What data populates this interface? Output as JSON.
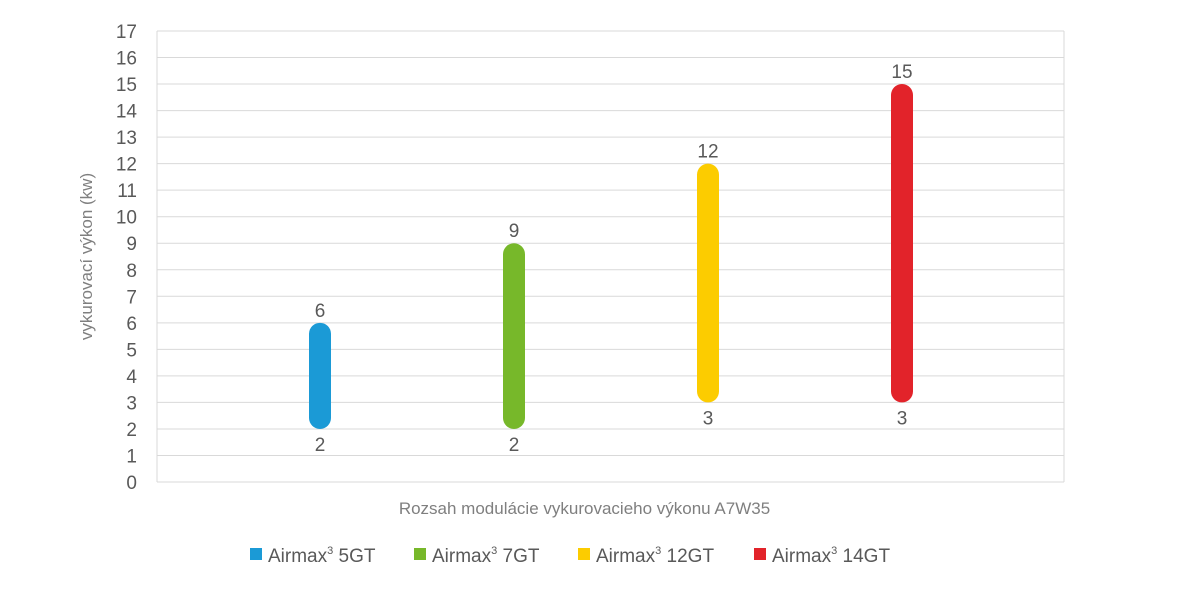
{
  "chart_data": {
    "type": "range-bar",
    "ylabel": "vykurovací výkon (kw)",
    "xlabel": "Rozsah modulácie vykurovacieho výkonu A7W35",
    "ylim": [
      0,
      17
    ],
    "ytick_step": 1,
    "grid": true,
    "legend_position": "bottom",
    "series": [
      {
        "name": "Airmax3 5GT",
        "legend_base": "Airmax",
        "legend_sup": "3",
        "legend_suffix": " 5GT",
        "min": 2,
        "max": 6,
        "color": "#1b9ad6"
      },
      {
        "name": "Airmax3 7GT",
        "legend_base": "Airmax",
        "legend_sup": "3",
        "legend_suffix": " 7GT",
        "min": 2,
        "max": 9,
        "color": "#77b82a"
      },
      {
        "name": "Airmax3 12GT",
        "legend_base": "Airmax",
        "legend_sup": "3",
        "legend_suffix": " 12GT",
        "min": 3,
        "max": 12,
        "color": "#fccc00"
      },
      {
        "name": "Airmax3 14GT",
        "legend_base": "Airmax",
        "legend_sup": "3",
        "legend_suffix": " 14GT",
        "min": 3,
        "max": 15,
        "color": "#e2232a"
      }
    ]
  }
}
